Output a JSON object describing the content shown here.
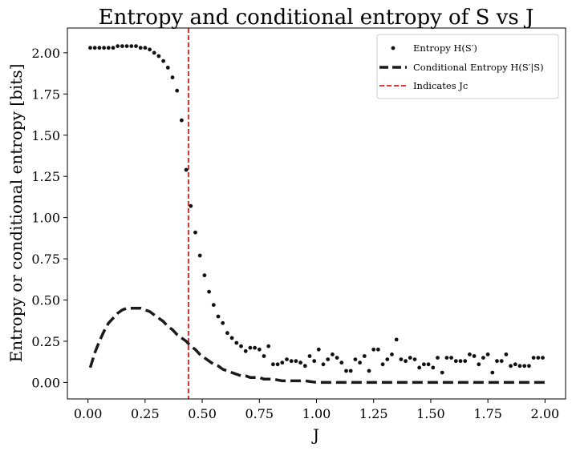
{
  "chart_data": {
    "type": "scatter+line",
    "title": "Entropy and conditional entropy of S vs J",
    "xlabel": "J",
    "ylabel": "Entropy or conditional entropy [bits]",
    "xlim": [
      -0.09,
      2.09
    ],
    "ylim": [
      -0.1,
      2.15
    ],
    "x_ticks": [
      0.0,
      0.25,
      0.5,
      0.75,
      1.0,
      1.25,
      1.5,
      1.75,
      2.0
    ],
    "x_tick_labels": [
      "0.00",
      "0.25",
      "0.50",
      "0.75",
      "1.00",
      "1.25",
      "1.50",
      "1.75",
      "2.00"
    ],
    "y_ticks": [
      0.0,
      0.25,
      0.5,
      0.75,
      1.0,
      1.25,
      1.5,
      1.75,
      2.0
    ],
    "y_tick_labels": [
      "0.00",
      "0.25",
      "0.50",
      "0.75",
      "1.00",
      "1.25",
      "1.50",
      "1.75",
      "2.00"
    ],
    "grid": false,
    "legend_position": "top-right",
    "critical_J": 0.44,
    "series": [
      {
        "name": "Entropy H(S')",
        "legend_label": "Entropy H(S′)",
        "kind": "points",
        "color": "#111111",
        "x": [
          0.01,
          0.03,
          0.05,
          0.07,
          0.09,
          0.11,
          0.13,
          0.15,
          0.17,
          0.19,
          0.21,
          0.23,
          0.25,
          0.27,
          0.29,
          0.31,
          0.33,
          0.35,
          0.37,
          0.39,
          0.41,
          0.43,
          0.45,
          0.47,
          0.49,
          0.51,
          0.53,
          0.55,
          0.57,
          0.59,
          0.61,
          0.63,
          0.65,
          0.67,
          0.69,
          0.71,
          0.73,
          0.75,
          0.77,
          0.79,
          0.81,
          0.83,
          0.85,
          0.87,
          0.89,
          0.91,
          0.93,
          0.95,
          0.97,
          0.99,
          1.01,
          1.03,
          1.05,
          1.07,
          1.09,
          1.11,
          1.13,
          1.15,
          1.17,
          1.19,
          1.21,
          1.23,
          1.25,
          1.27,
          1.29,
          1.31,
          1.33,
          1.35,
          1.37,
          1.39,
          1.41,
          1.43,
          1.45,
          1.47,
          1.49,
          1.51,
          1.53,
          1.55,
          1.57,
          1.59,
          1.61,
          1.63,
          1.65,
          1.67,
          1.69,
          1.71,
          1.73,
          1.75,
          1.77,
          1.79,
          1.81,
          1.83,
          1.85,
          1.87,
          1.89,
          1.91,
          1.93,
          1.95,
          1.97,
          1.99
        ],
        "y": [
          2.03,
          2.03,
          2.03,
          2.03,
          2.03,
          2.03,
          2.04,
          2.04,
          2.04,
          2.04,
          2.04,
          2.03,
          2.03,
          2.02,
          2.0,
          1.98,
          1.95,
          1.91,
          1.85,
          1.77,
          1.59,
          1.29,
          1.07,
          0.91,
          0.77,
          0.65,
          0.55,
          0.47,
          0.4,
          0.36,
          0.3,
          0.27,
          0.24,
          0.22,
          0.19,
          0.21,
          0.21,
          0.2,
          0.16,
          0.22,
          0.11,
          0.11,
          0.12,
          0.14,
          0.13,
          0.13,
          0.12,
          0.1,
          0.16,
          0.13,
          0.2,
          0.11,
          0.14,
          0.17,
          0.15,
          0.12,
          0.07,
          0.07,
          0.14,
          0.12,
          0.16,
          0.07,
          0.2,
          0.2,
          0.11,
          0.14,
          0.17,
          0.26,
          0.14,
          0.13,
          0.15,
          0.14,
          0.09,
          0.11,
          0.11,
          0.09,
          0.15,
          0.06,
          0.15,
          0.15,
          0.13,
          0.13,
          0.13,
          0.17,
          0.16,
          0.11,
          0.15,
          0.17,
          0.06,
          0.13,
          0.13,
          0.17,
          0.1,
          0.11,
          0.1,
          0.1,
          0.1,
          0.15,
          0.15,
          0.15
        ]
      },
      {
        "name": "Conditional Entropy H(S'|S)",
        "legend_label": "Conditional Entropy H(S′|S)",
        "kind": "dashed-line",
        "color": "#1a1a1a",
        "x": [
          0.01,
          0.03,
          0.05,
          0.07,
          0.09,
          0.11,
          0.13,
          0.15,
          0.17,
          0.19,
          0.21,
          0.23,
          0.25,
          0.27,
          0.29,
          0.31,
          0.33,
          0.35,
          0.37,
          0.39,
          0.41,
          0.43,
          0.45,
          0.47,
          0.49,
          0.51,
          0.53,
          0.55,
          0.57,
          0.59,
          0.61,
          0.63,
          0.65,
          0.67,
          0.69,
          0.71,
          0.73,
          0.75,
          0.77,
          0.79,
          0.81,
          0.85,
          0.9,
          0.95,
          1.0,
          1.1,
          1.2,
          1.3,
          1.4,
          1.5,
          1.6,
          1.7,
          1.8,
          1.9,
          2.0
        ],
        "y": [
          0.09,
          0.18,
          0.25,
          0.31,
          0.36,
          0.39,
          0.42,
          0.44,
          0.45,
          0.45,
          0.45,
          0.45,
          0.44,
          0.43,
          0.41,
          0.39,
          0.37,
          0.34,
          0.32,
          0.29,
          0.27,
          0.25,
          0.22,
          0.2,
          0.17,
          0.15,
          0.13,
          0.11,
          0.1,
          0.08,
          0.07,
          0.06,
          0.05,
          0.04,
          0.04,
          0.03,
          0.03,
          0.03,
          0.02,
          0.02,
          0.02,
          0.01,
          0.01,
          0.01,
          0.0,
          0.0,
          0.0,
          0.0,
          0.0,
          0.0,
          0.0,
          0.0,
          0.0,
          0.0,
          0.0
        ]
      },
      {
        "name": "Indicates J_c",
        "legend_label": "Indicates Jc",
        "kind": "vertical-line",
        "color": "#e41a1c",
        "x": 0.44
      }
    ]
  }
}
